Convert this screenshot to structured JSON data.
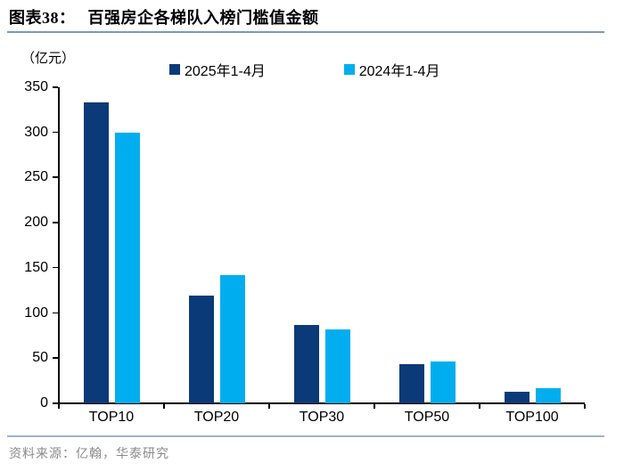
{
  "header": {
    "title_prefix": "图表38：",
    "title": "百强房企各梯队入榜门槛值金额"
  },
  "footer": {
    "source": "资料来源：亿翰，华泰研究"
  },
  "chart_data": {
    "type": "bar",
    "title": "百强房企各梯队入榜门槛值金额",
    "unit_label": "（亿元）",
    "categories": [
      "TOP10",
      "TOP20",
      "TOP30",
      "TOP50",
      "TOP100"
    ],
    "series": [
      {
        "name": "2025年1-4月",
        "color": "#0a3a78",
        "values": [
          333,
          119,
          87,
          43,
          13
        ]
      },
      {
        "name": "2024年1-4月",
        "color": "#00aeef",
        "values": [
          300,
          142,
          82,
          46,
          17
        ]
      }
    ],
    "xlabel": "",
    "ylabel": "亿元",
    "ylim": [
      0,
      350
    ],
    "yticks": [
      0,
      50,
      100,
      150,
      200,
      250,
      300,
      350
    ],
    "grid": false,
    "legend_position": "top"
  },
  "colors": {
    "bar_2025": "#0a3a78",
    "bar_2024": "#00aeef",
    "divider_top": "#7d97b9",
    "divider_bottom": "#9db3cc",
    "footer_text": "#8a8a8a",
    "axis": "#000000"
  }
}
